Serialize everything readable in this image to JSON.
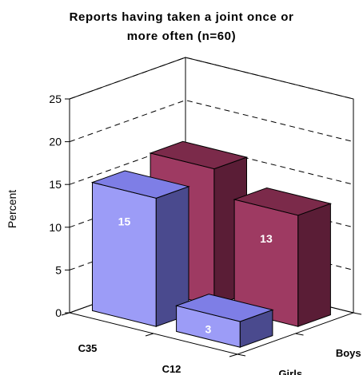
{
  "chart_data": {
    "type": "bar",
    "title_lines": [
      "Reports having taken a joint once or",
      "more often (n=60)"
    ],
    "ylabel": "Percent",
    "ylim": [
      0,
      25
    ],
    "yticks": [
      0,
      5,
      10,
      15,
      20,
      25
    ],
    "categories": [
      "C35",
      "C12"
    ],
    "series": [
      {
        "name": "Girls",
        "values": [
          15,
          3
        ],
        "colors": {
          "front": "#9c9cf7",
          "side": "#4a4a8e",
          "top": "#7e7ee6"
        }
      },
      {
        "name": "Boys",
        "values": [
          16,
          13
        ],
        "colors": {
          "front": "#9e3a62",
          "side": "#5a1d36",
          "top": "#7b2a4a"
        }
      }
    ],
    "data_labels": true,
    "grid": "dashed"
  }
}
